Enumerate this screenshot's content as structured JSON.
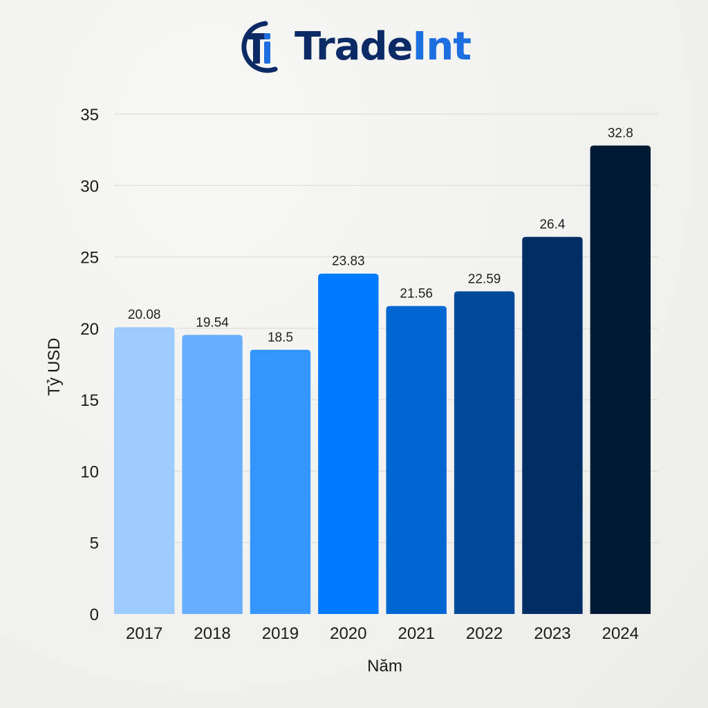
{
  "logo": {
    "brand_part1": "Trade",
    "brand_part2": "Int",
    "mark_icon": "tradeint-ti-monogram-icon",
    "colors": {
      "navy": "#0b2a66",
      "blue": "#1d6fe0"
    }
  },
  "chart_data": {
    "type": "bar",
    "categories": [
      "2017",
      "2018",
      "2019",
      "2020",
      "2021",
      "2022",
      "2023",
      "2024"
    ],
    "values": [
      20.08,
      19.54,
      18.5,
      23.83,
      21.56,
      22.59,
      26.4,
      32.8
    ],
    "data_labels": [
      "20.08",
      "19.54",
      "18.5",
      "23.83",
      "21.56",
      "22.59",
      "26.4",
      "32.8"
    ],
    "bar_colors": [
      "#9ecbff",
      "#66afff",
      "#3395ff",
      "#007bff",
      "#0066d2",
      "#004a99",
      "#002e64",
      "#001a33"
    ],
    "xlabel": "Năm",
    "ylabel": "Tỷ USD",
    "ylim": [
      0,
      35
    ],
    "yticks": [
      0,
      5,
      10,
      15,
      20,
      25,
      30,
      35
    ],
    "grid": true,
    "grid_color": "#d9d9d9"
  }
}
